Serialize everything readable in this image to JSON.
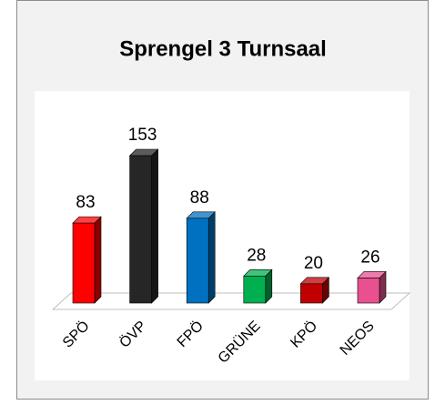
{
  "chart_data": {
    "type": "bar3d",
    "title": "Sprengel 3  Turnsaal",
    "categories": [
      "SPÖ",
      "ÖVP",
      "FPÖ",
      "GRÜNE",
      "KPÖ",
      "NEOS"
    ],
    "values": [
      83,
      153,
      88,
      28,
      20,
      26
    ],
    "colors": [
      "#ff0000",
      "#262626",
      "#0070c0",
      "#00b050",
      "#c00000",
      "#e8508f"
    ]
  }
}
